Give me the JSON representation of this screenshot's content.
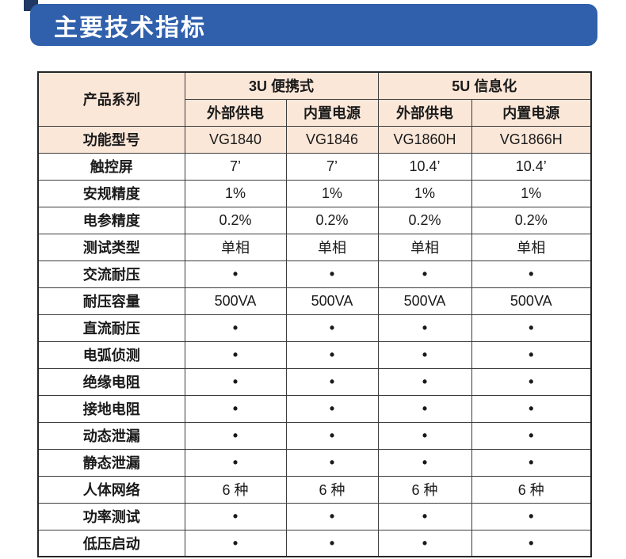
{
  "title": "主要技术指标",
  "colors": {
    "banner_blue": "#3060ac",
    "navy_accent": "#1f3864",
    "header_peach": "#fbe7d8",
    "border": "#3c3c3c"
  },
  "table": {
    "corner_header": "产品系列",
    "groups": [
      {
        "label": "3U 便携式",
        "sub": [
          "外部供电",
          "内置电源"
        ]
      },
      {
        "label": "5U 信息化",
        "sub": [
          "外部供电",
          "内置电源"
        ]
      }
    ],
    "rows": [
      {
        "label": "功能型号",
        "values": [
          "VG1840",
          "VG1846",
          "VG1860H",
          "VG1866H"
        ],
        "highlight": true
      },
      {
        "label": "触控屏",
        "values": [
          "7’",
          "7’",
          "10.4’",
          "10.4’"
        ]
      },
      {
        "label": "安规精度",
        "values": [
          "1%",
          "1%",
          "1%",
          "1%"
        ]
      },
      {
        "label": "电参精度",
        "values": [
          "0.2%",
          "0.2%",
          "0.2%",
          "0.2%"
        ]
      },
      {
        "label": "测试类型",
        "values": [
          "单相",
          "单相",
          "单相",
          "单相"
        ]
      },
      {
        "label": "交流耐压",
        "values": [
          "•",
          "•",
          "•",
          "•"
        ]
      },
      {
        "label": "耐压容量",
        "values": [
          "500VA",
          "500VA",
          "500VA",
          "500VA"
        ]
      },
      {
        "label": "直流耐压",
        "values": [
          "•",
          "•",
          "•",
          "•"
        ]
      },
      {
        "label": "电弧侦测",
        "values": [
          "•",
          "•",
          "•",
          "•"
        ]
      },
      {
        "label": "绝缘电阻",
        "values": [
          "•",
          "•",
          "•",
          "•"
        ]
      },
      {
        "label": "接地电阻",
        "values": [
          "•",
          "•",
          "•",
          "•"
        ]
      },
      {
        "label": "动态泄漏",
        "values": [
          "•",
          "•",
          "•",
          "•"
        ]
      },
      {
        "label": "静态泄漏",
        "values": [
          "•",
          "•",
          "•",
          "•"
        ]
      },
      {
        "label": "人体网络",
        "values": [
          "6 种",
          "6 种",
          "6 种",
          "6 种"
        ]
      },
      {
        "label": "功率测试",
        "values": [
          "•",
          "•",
          "•",
          "•"
        ]
      },
      {
        "label": "低压启动",
        "values": [
          "•",
          "•",
          "•",
          "•"
        ]
      }
    ]
  }
}
